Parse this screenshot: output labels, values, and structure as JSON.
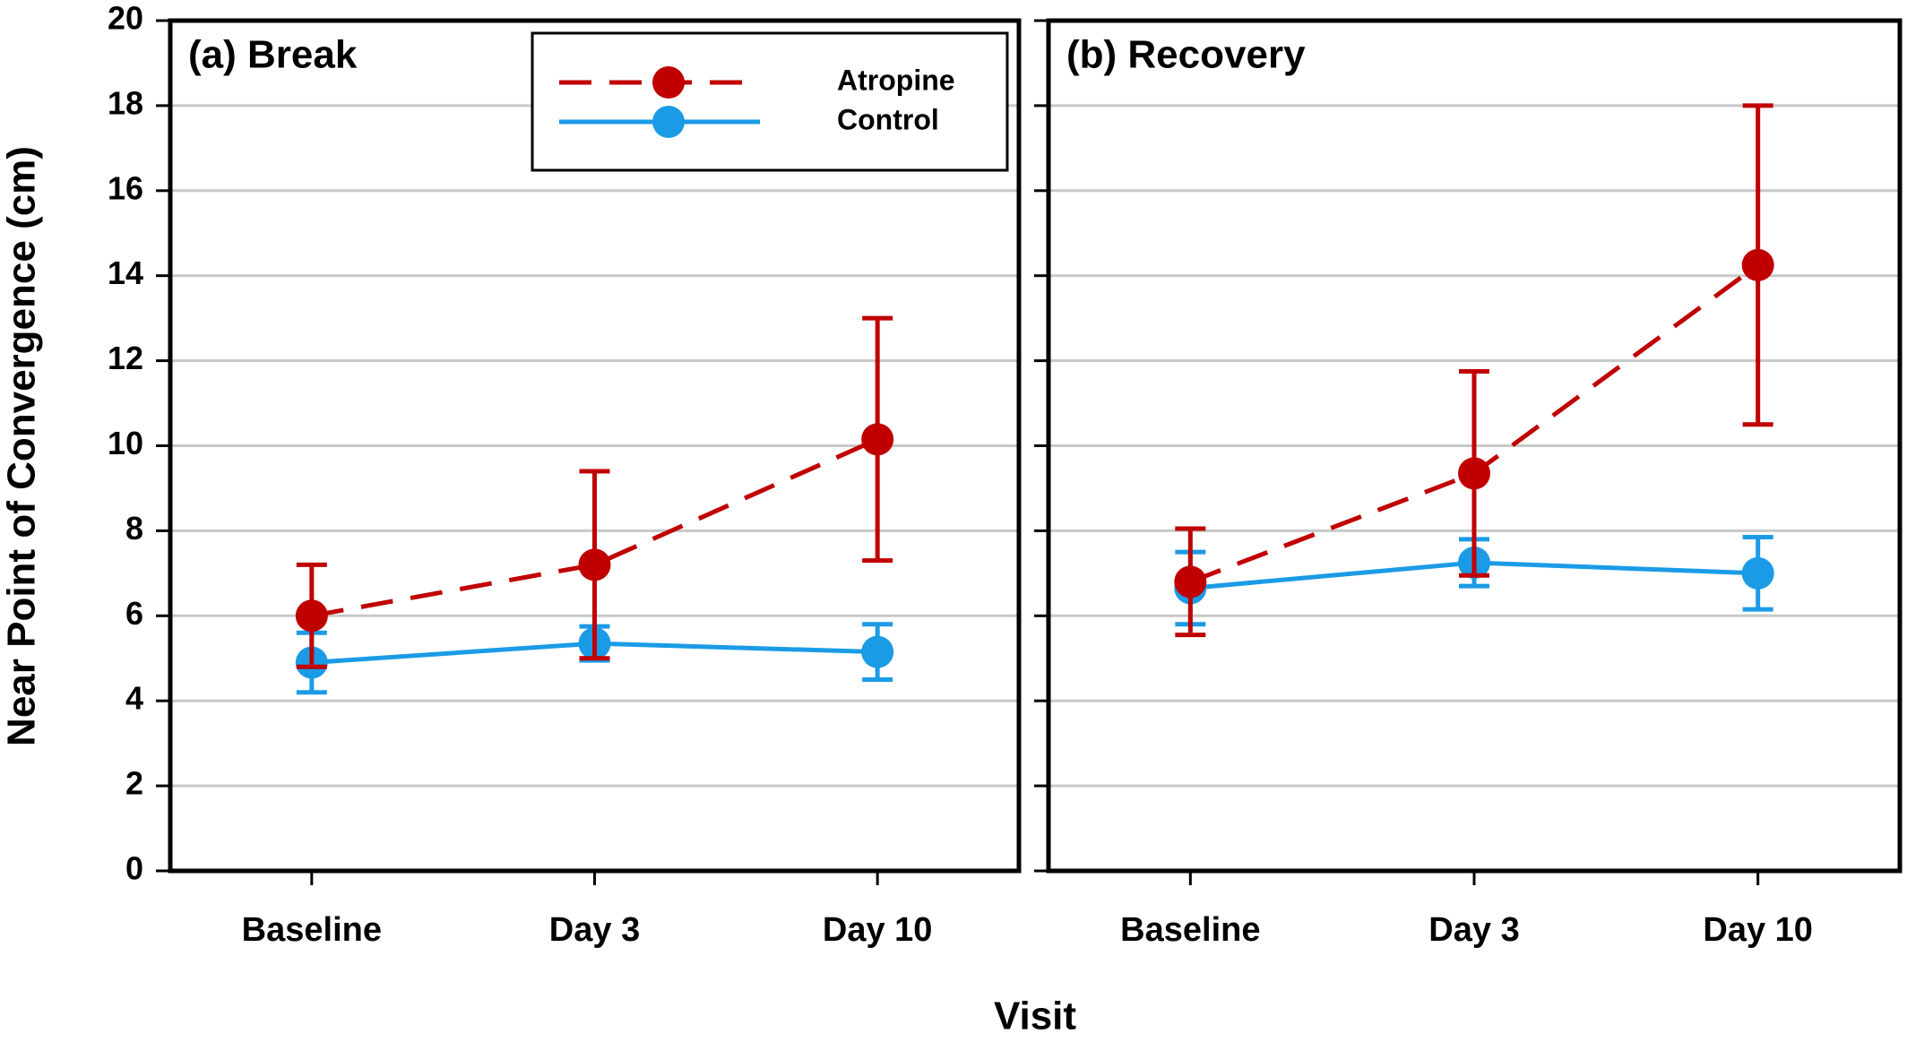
{
  "xlabel": "Visit",
  "chart_data": [
    {
      "type": "line",
      "title": "(a) Break",
      "ylabel": "Near Point of Convergence (cm)",
      "categories": [
        "Baseline",
        "Day 3",
        "Day 10"
      ],
      "series": [
        {
          "name": "Atropine",
          "color": "#c00000",
          "dashed": true,
          "values": [
            6.0,
            7.2,
            10.15
          ],
          "errors": [
            1.2,
            2.2,
            2.85
          ]
        },
        {
          "name": "Control",
          "color": "#1b9be6",
          "dashed": false,
          "values": [
            4.9,
            5.35,
            5.15
          ],
          "errors": [
            0.7,
            0.4,
            0.65
          ]
        }
      ],
      "ylim": [
        0,
        20
      ],
      "yticks": [
        0,
        2,
        4,
        6,
        8,
        10,
        12,
        14,
        16,
        18,
        20
      ],
      "grid": true,
      "legend": "upper right"
    },
    {
      "type": "line",
      "title": "(b) Recovery",
      "categories": [
        "Baseline",
        "Day 3",
        "Day 10"
      ],
      "series": [
        {
          "color": "#c00000",
          "dashed": true,
          "values": [
            6.8,
            9.35,
            14.25
          ],
          "errors": [
            1.25,
            2.4,
            3.75
          ]
        },
        {
          "color": "#1b9be6",
          "dashed": false,
          "values": [
            6.65,
            7.25,
            7.0
          ],
          "errors": [
            0.85,
            0.55,
            0.85
          ]
        }
      ],
      "ylim": [
        0,
        20
      ],
      "yticks": [
        0,
        2,
        4,
        6,
        8,
        10,
        12,
        14,
        16,
        18,
        20
      ],
      "grid": true
    }
  ]
}
